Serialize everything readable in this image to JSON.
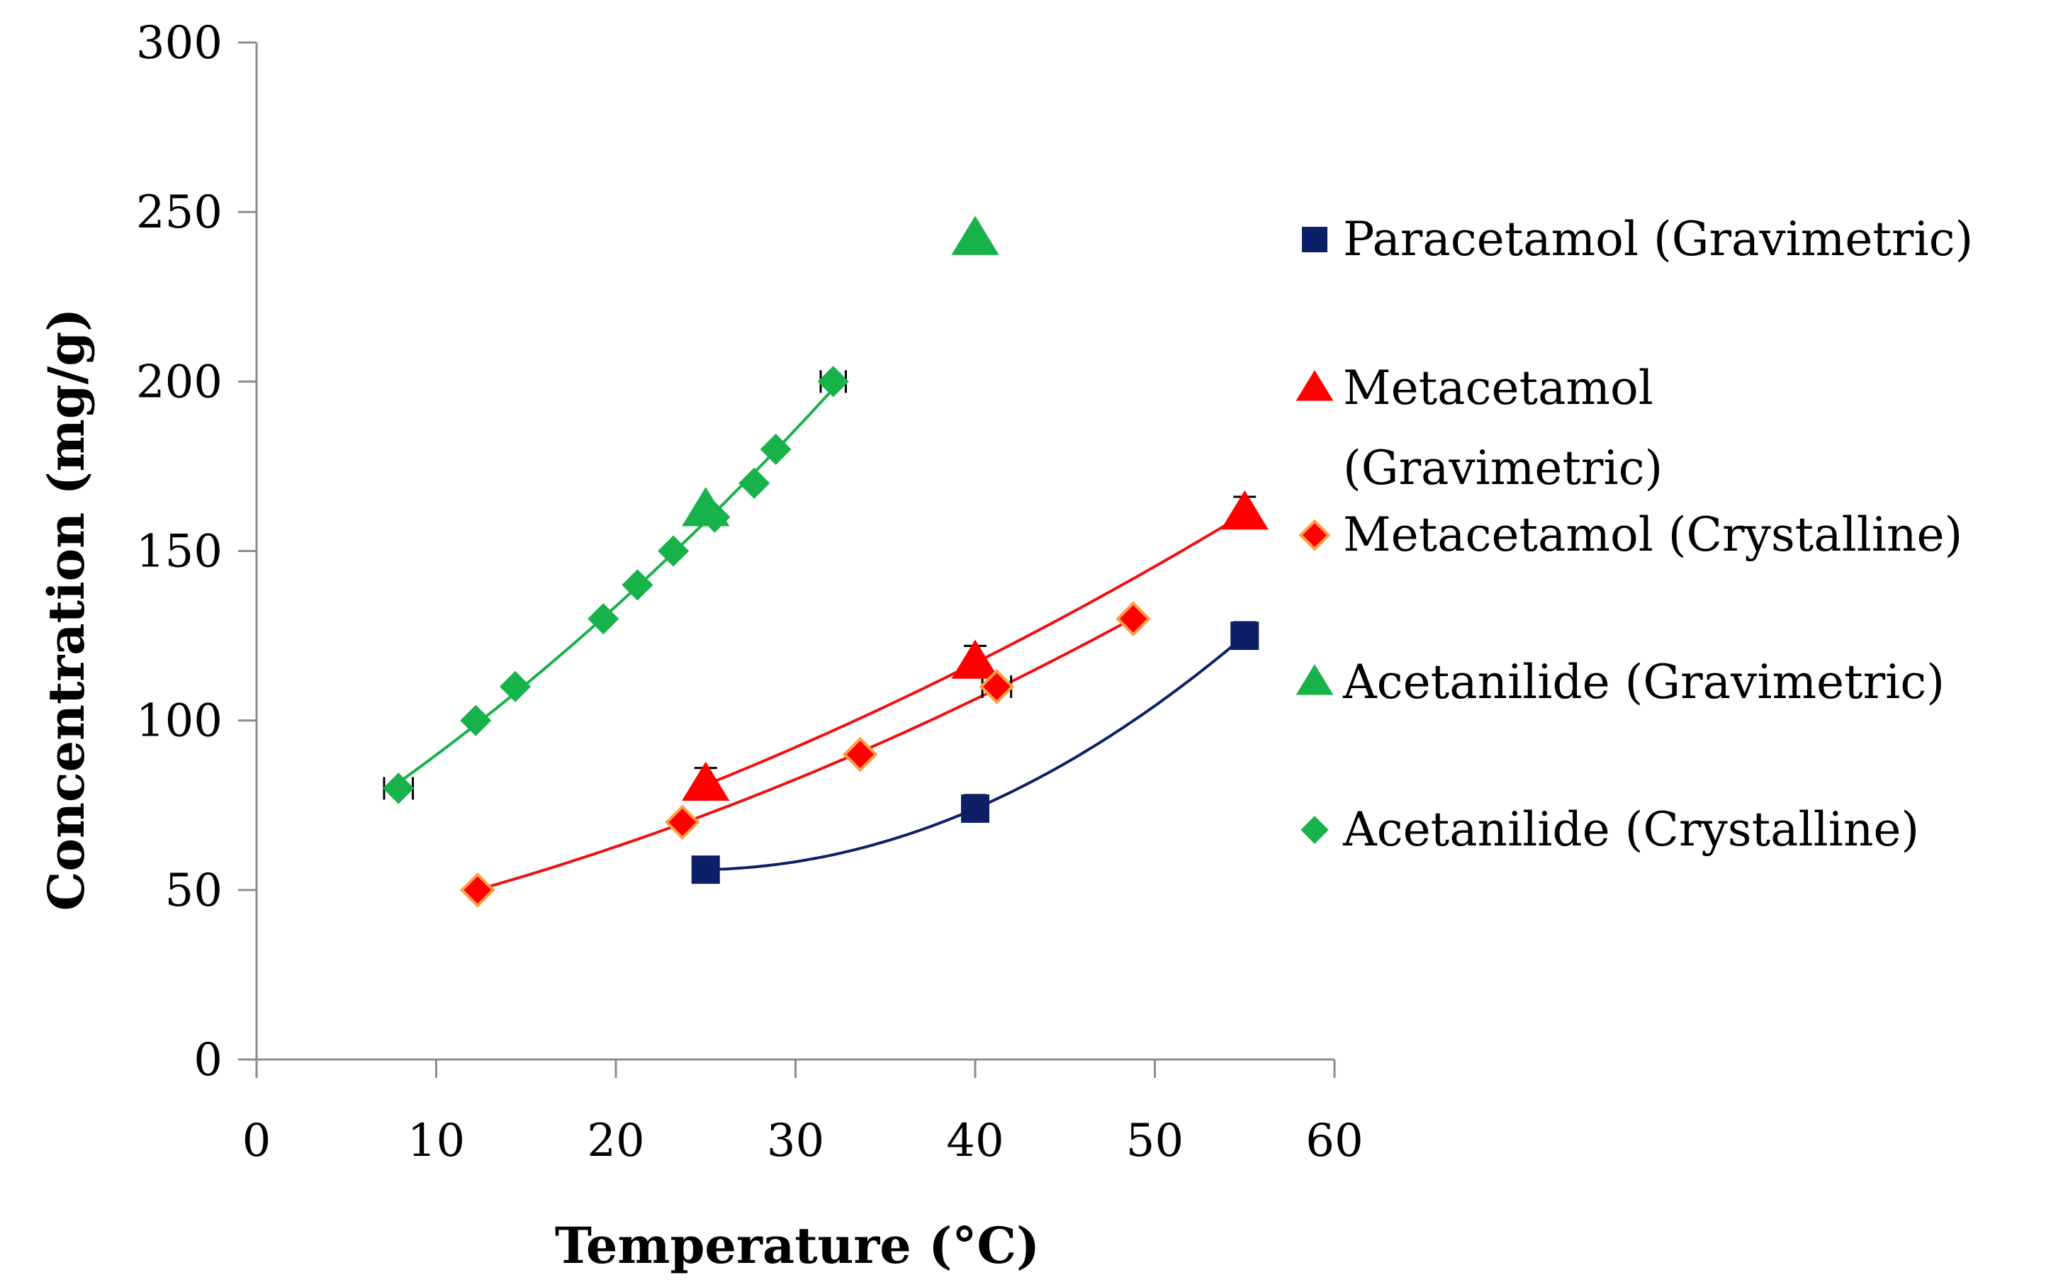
{
  "chart_data": {
    "type": "scatter",
    "title": "",
    "xlabel": "Temperature (°C)",
    "ylabel": "Concentration (mg/g)",
    "xlim": [
      0,
      60
    ],
    "ylim": [
      0,
      300
    ],
    "xticks": [
      0,
      10,
      20,
      30,
      40,
      50,
      60
    ],
    "yticks": [
      0,
      50,
      100,
      150,
      200,
      250,
      300
    ],
    "grid": false,
    "legend_position": "right",
    "series": [
      {
        "name": "Paracetamol (Gravimetric)",
        "marker": "square",
        "color": "#0d1f66",
        "points": [
          [
            25,
            56
          ],
          [
            40,
            74
          ],
          [
            55,
            125
          ]
        ],
        "error_y": [
          0,
          4,
          4
        ],
        "trendline": true,
        "trend_color": "#0d1f66"
      },
      {
        "name": "Metacetamol (Gravimetric)",
        "legend_lines": [
          "Metacetamol",
          "(Gravimetric)"
        ],
        "marker": "triangle",
        "color": "#ff0000",
        "points": [
          [
            25,
            81
          ],
          [
            40,
            117
          ],
          [
            55,
            161
          ]
        ],
        "error_y": [
          5,
          5,
          5
        ],
        "trendline": true,
        "trend_color": "#ee1111"
      },
      {
        "name": "Metacetamol (Crystalline)",
        "marker": "diamond",
        "color": "#ff0000",
        "edge_color": "#ffa040",
        "points": [
          [
            12.3,
            50
          ],
          [
            23.7,
            70
          ],
          [
            33.6,
            90
          ],
          [
            41.2,
            110
          ],
          [
            48.8,
            130
          ]
        ],
        "error_x": [
          0,
          0,
          0,
          0.8,
          0
        ],
        "trendline": true,
        "trend_color": "#ee1111"
      },
      {
        "name": "Acetanilide (Gravimetric)",
        "marker": "triangle",
        "color": "#18b24a",
        "points": [
          [
            25,
            162
          ],
          [
            40,
            242
          ]
        ],
        "trendline": false
      },
      {
        "name": "Acetanilide (Crystalline)",
        "marker": "diamond",
        "color": "#18b24a",
        "points": [
          [
            7.9,
            80
          ],
          [
            12.2,
            100
          ],
          [
            14.4,
            110
          ],
          [
            19.3,
            130
          ],
          [
            21.2,
            140
          ],
          [
            23.2,
            150
          ],
          [
            25.5,
            160
          ],
          [
            27.7,
            170
          ],
          [
            28.9,
            180
          ],
          [
            32.1,
            200
          ]
        ],
        "error_x": [
          0.8,
          0,
          0,
          0,
          0,
          0,
          0,
          0,
          0,
          0.7
        ],
        "trendline": true,
        "trend_color": "#18b24a"
      }
    ]
  }
}
